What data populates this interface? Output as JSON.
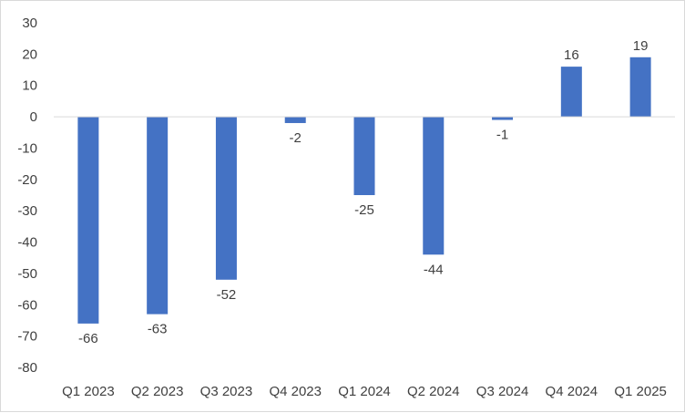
{
  "chart_data": {
    "type": "bar",
    "categories": [
      "Q1 2023",
      "Q2 2023",
      "Q3 2023",
      "Q4 2023",
      "Q1 2024",
      "Q2 2024",
      "Q3 2024",
      "Q4 2024",
      "Q1 2025"
    ],
    "values": [
      -66,
      -63,
      -52,
      -2,
      -25,
      -44,
      -1,
      16,
      19
    ],
    "ylim": [
      -80,
      30
    ],
    "yticks": [
      30,
      20,
      10,
      0,
      -10,
      -20,
      -30,
      -40,
      -50,
      -60,
      -70,
      -80
    ],
    "grid": false,
    "legend": "none",
    "data_labels": true,
    "colors": {
      "bar": "#4472c4",
      "axis": "#d9d9d9",
      "text": "#404040"
    }
  }
}
